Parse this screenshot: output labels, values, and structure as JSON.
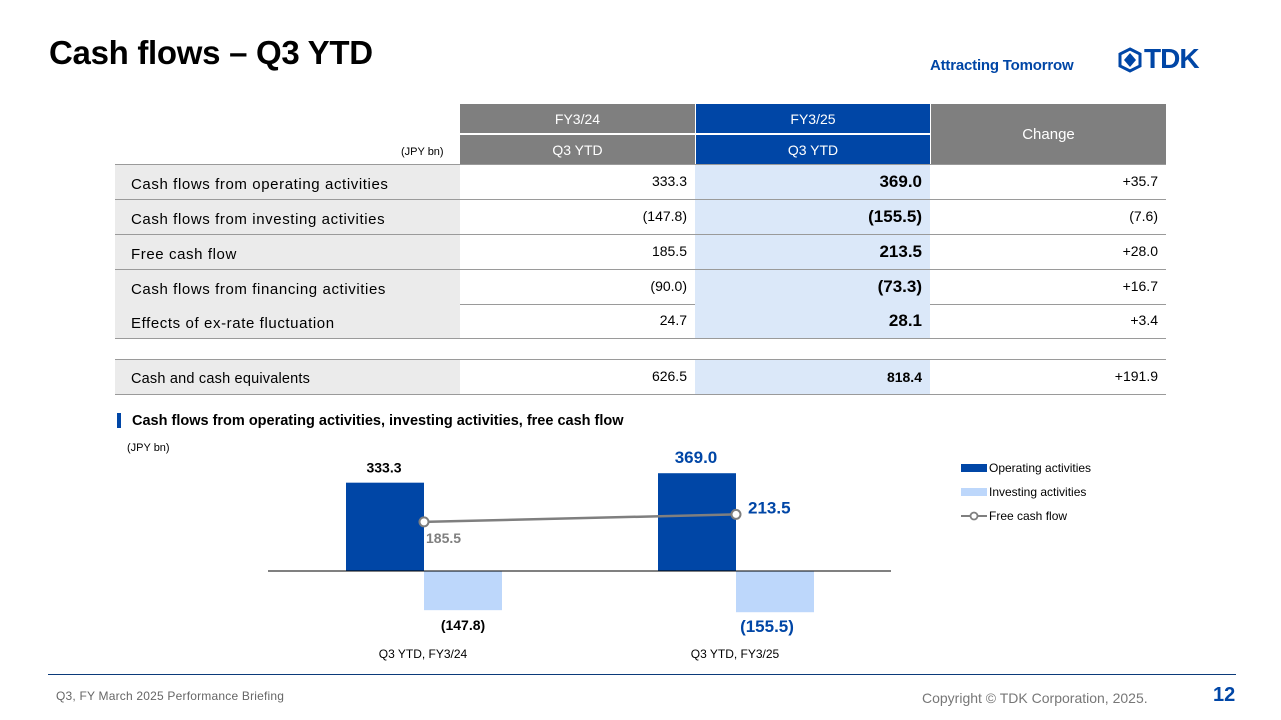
{
  "title": "Cash flows – Q3 YTD",
  "tagline": "Attracting Tomorrow",
  "logo_text": "TDK",
  "colors": {
    "brand": "#0046a6",
    "header_gray": "#7f7f7f",
    "light_blue": "#dbe8f9",
    "investing": "#bdd7fb"
  },
  "table": {
    "unit": "(JPY bn)",
    "header": {
      "col1_top": "FY3/24",
      "col1_bottom": "Q3 YTD",
      "col2_top": "FY3/25",
      "col2_bottom": "Q3 YTD",
      "col3": "Change"
    },
    "rows": [
      {
        "label": "Cash flows from operating activities",
        "fy24": "333.3",
        "fy25": "369.0",
        "change": "+35.7"
      },
      {
        "label": "Cash flows from investing activities",
        "fy24": "(147.8)",
        "fy25": "(155.5)",
        "change": "(7.6)"
      },
      {
        "label": "Free cash flow",
        "fy24": "185.5",
        "fy25": "213.5",
        "change": "+28.0"
      },
      {
        "label": "Cash flows from financing activities",
        "fy24": "(90.0)",
        "fy25": "(73.3)",
        "change": "+16.7"
      },
      {
        "label": "Effects of ex-rate fluctuation",
        "fy24": "24.7",
        "fy25": "28.1",
        "change": "+3.4"
      }
    ],
    "total": {
      "label": "Cash and cash equivalents",
      "fy24": "626.5",
      "fy25": "818.4",
      "change": "+191.9"
    }
  },
  "chart_section_title": "Cash flows from operating activities, investing activities, free cash flow",
  "chart_data": {
    "type": "bar",
    "unit": "(JPY bn)",
    "categories": [
      "Q3 YTD, FY3/24",
      "Q3 YTD, FY3/25"
    ],
    "series": [
      {
        "name": "Operating activities",
        "kind": "bar",
        "values": [
          333.3,
          369.0
        ],
        "labels": [
          "333.3",
          "369.0"
        ]
      },
      {
        "name": "Investing activities",
        "kind": "bar",
        "values": [
          -147.8,
          -155.5
        ],
        "labels": [
          "(147.8)",
          "(155.5)"
        ]
      },
      {
        "name": "Free cash flow",
        "kind": "line",
        "values": [
          185.5,
          213.5
        ],
        "labels": [
          "185.5",
          "213.5"
        ]
      }
    ],
    "legend": "right"
  },
  "footer": {
    "left": "Q3, FY March 2025 Performance Briefing",
    "copyright": "Copyright © TDK Corporation, 2025.",
    "page": "12"
  }
}
